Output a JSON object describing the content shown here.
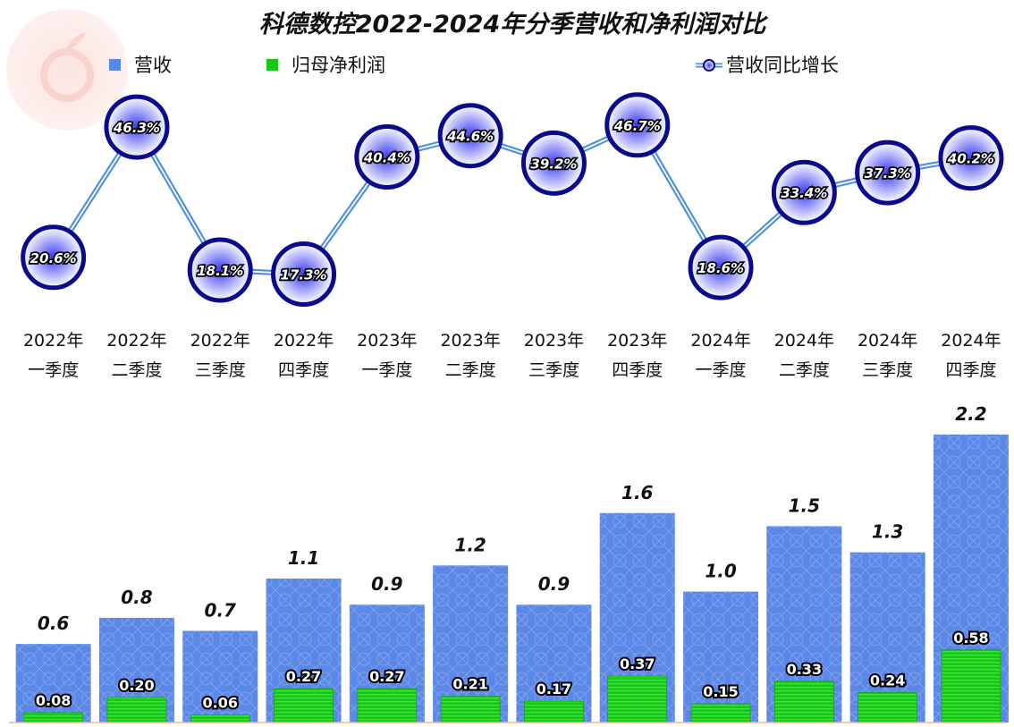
{
  "chart_data": {
    "type": "bar",
    "title": "科德数控2022-2024年分季营收和净利润对比",
    "legend": [
      "营收",
      "归母净利润",
      "营收同比增长"
    ],
    "legend_position": "top",
    "categories": [
      [
        "2022年",
        "一季度"
      ],
      [
        "2022年",
        "二季度"
      ],
      [
        "2022年",
        "三季度"
      ],
      [
        "2022年",
        "四季度"
      ],
      [
        "2023年",
        "一季度"
      ],
      [
        "2023年",
        "二季度"
      ],
      [
        "2023年",
        "三季度"
      ],
      [
        "2023年",
        "四季度"
      ],
      [
        "2024年",
        "一季度"
      ],
      [
        "2024年",
        "二季度"
      ],
      [
        "2024年",
        "三季度"
      ],
      [
        "2024年",
        "四季度"
      ]
    ],
    "series": [
      {
        "name": "营收",
        "type": "bar",
        "values": [
          0.6,
          0.8,
          0.7,
          1.1,
          0.9,
          1.2,
          0.9,
          1.6,
          1.0,
          1.5,
          1.3,
          2.2
        ],
        "labels": [
          "0.6",
          "0.8",
          "0.7",
          "1.1",
          "0.9",
          "1.2",
          "0.9",
          "1.6",
          "1.0",
          "1.5",
          "1.3",
          "2.2"
        ],
        "color": "#5b87e6"
      },
      {
        "name": "归母净利润",
        "type": "bar",
        "values": [
          0.08,
          0.2,
          0.06,
          0.27,
          0.27,
          0.21,
          0.17,
          0.37,
          0.15,
          0.33,
          0.24,
          0.58
        ],
        "labels": [
          "0.08",
          "0.20",
          "0.06",
          "0.27",
          "0.27",
          "0.21",
          "0.17",
          "0.37",
          "0.15",
          "0.33",
          "0.24",
          "0.58"
        ],
        "color": "#14c814"
      },
      {
        "name": "营收同比增长",
        "type": "line",
        "values": [
          20.6,
          46.3,
          18.1,
          17.3,
          40.4,
          44.6,
          39.2,
          46.7,
          18.6,
          33.4,
          37.3,
          40.2
        ],
        "labels": [
          "20.6%",
          "46.3%",
          "18.1%",
          "17.3%",
          "40.4%",
          "44.6%",
          "39.2%",
          "46.7%",
          "18.6%",
          "33.4%",
          "37.3%",
          "40.2%"
        ],
        "color": "#4a8fe0"
      }
    ],
    "grid": false
  }
}
